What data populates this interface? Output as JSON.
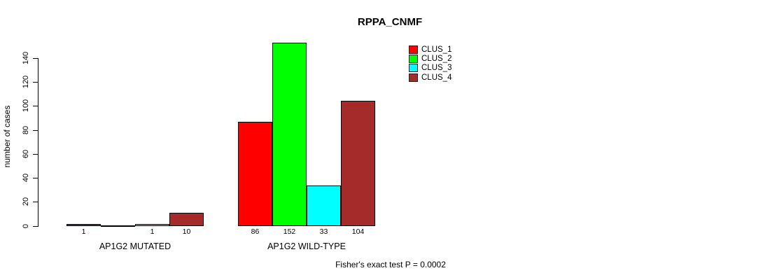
{
  "title": "RPPA_CNMF",
  "footer": "Fisher's exact test P = 0.0002",
  "chart_data": {
    "type": "bar",
    "title": "RPPA_CNMF",
    "xlabel": "",
    "ylabel": "number of cases",
    "categories": [
      "AP1G2 MUTATED",
      "AP1G2 WILD-TYPE"
    ],
    "series": [
      {
        "name": "CLUS_1",
        "color": "#ff0000",
        "values": [
          1,
          86
        ]
      },
      {
        "name": "CLUS_2",
        "color": "#00ff00",
        "values": [
          0,
          152
        ]
      },
      {
        "name": "CLUS_3",
        "color": "#00ffff",
        "values": [
          1,
          33
        ]
      },
      {
        "name": "CLUS_4",
        "color": "#a52a2a",
        "values": [
          10,
          104
        ]
      }
    ],
    "count_labels": [
      [
        "1",
        "",
        "1",
        "10"
      ],
      [
        "86",
        "152",
        "33",
        "104"
      ]
    ],
    "yticks": [
      0,
      20,
      40,
      60,
      80,
      100,
      120,
      140
    ],
    "ylim": [
      0,
      140
    ],
    "grid": false,
    "legend_position": "top-right",
    "annotation": "Fisher's exact test P = 0.0002"
  }
}
